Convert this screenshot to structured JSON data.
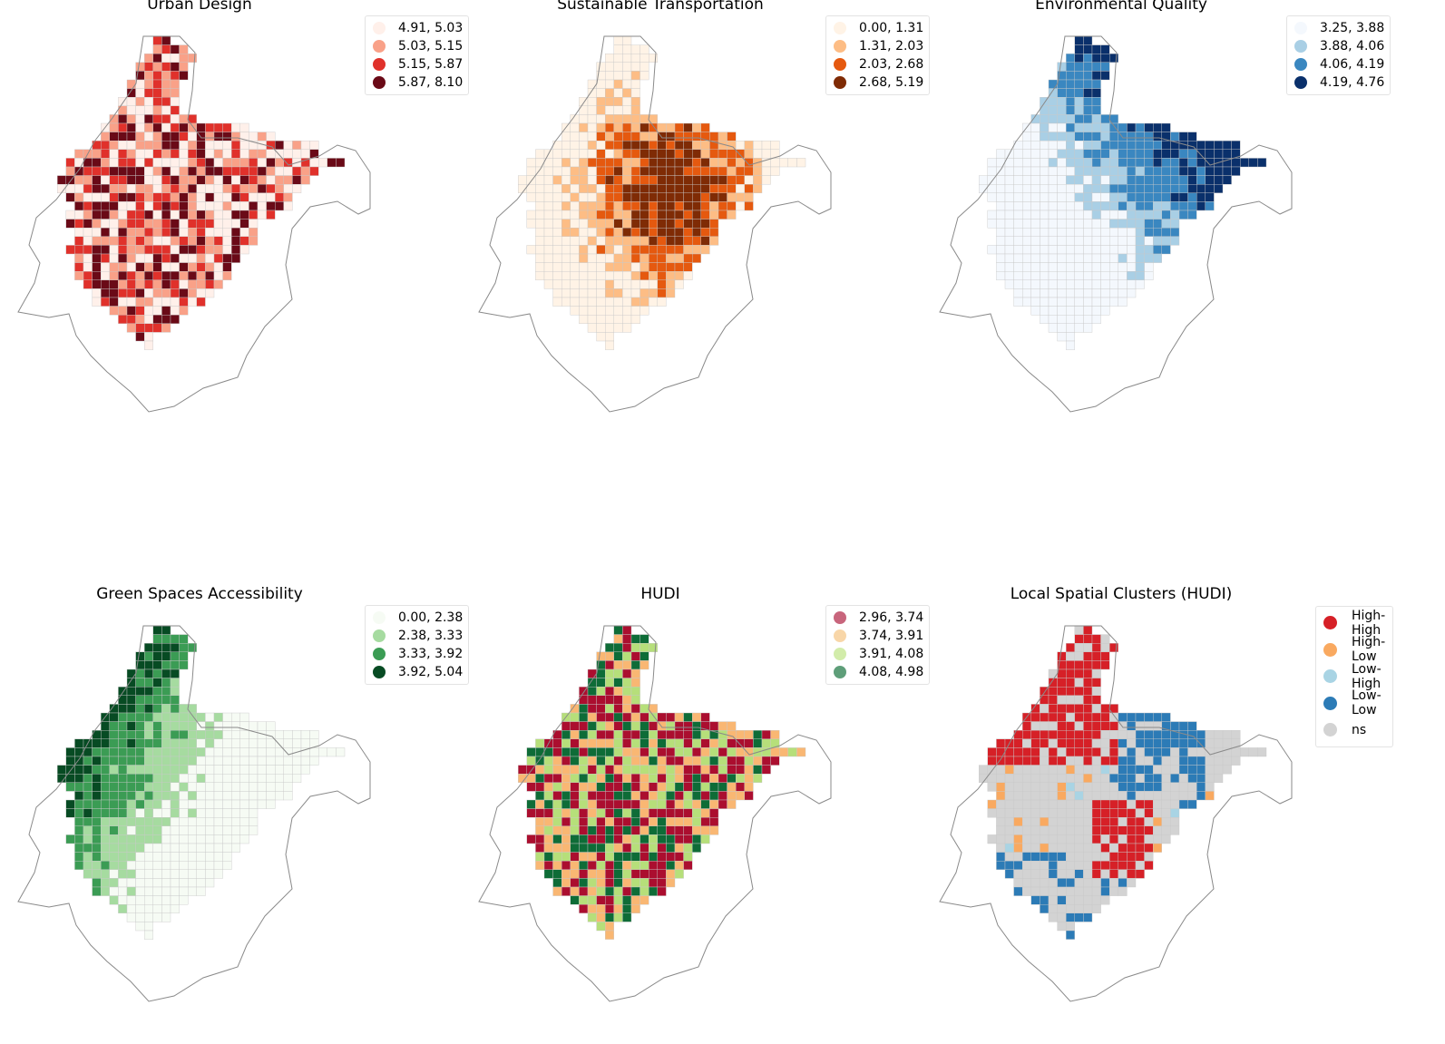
{
  "panels": [
    {
      "title": "Urban Design",
      "palette": [
        "#fff0ea",
        "#f9a188",
        "#e0312b",
        "#6a0a17"
      ],
      "legend": [
        "4.91, 5.03",
        "5.03, 5.15",
        "5.15, 5.87",
        "5.87, 8.10"
      ],
      "pattern": "random"
    },
    {
      "title": "Sustainable Transportation",
      "palette": [
        "#fff3e6",
        "#fdbd85",
        "#e5590f",
        "#7f2b05"
      ],
      "legend": [
        "0.00, 1.31",
        "1.31, 2.03",
        "2.03, 2.68",
        "2.68, 5.19"
      ],
      "pattern": "center-high"
    },
    {
      "title": "Environmental Quality",
      "palette": [
        "#f4f8fd",
        "#a9cfe5",
        "#3a87c0",
        "#0a306b"
      ],
      "legend": [
        "3.25, 3.88",
        "3.88, 4.06",
        "4.06, 4.19",
        "4.19, 4.76"
      ],
      "pattern": "northeast-high"
    },
    {
      "title": "Green Spaces Accessibility",
      "palette": [
        "#f6fbf4",
        "#a6dba0",
        "#3b9c54",
        "#074b23"
      ],
      "legend": [
        "0.00, 2.38",
        "2.38, 3.33",
        "3.33, 3.92",
        "3.92, 5.04"
      ],
      "pattern": "northwest-high"
    },
    {
      "title": "HUDI",
      "palette": [
        "#ab0e2f",
        "#f9b773",
        "#b6df7a",
        "#0e6c37"
      ],
      "legend_palette": [
        "#c8657c",
        "#f8d6a8",
        "#d2ecaa",
        "#5e9e79"
      ],
      "legend": [
        "2.96, 3.74",
        "3.74, 3.91",
        "3.91, 4.08",
        "4.08, 4.98"
      ],
      "pattern": "random"
    },
    {
      "title": "Local Spatial Clusters (HUDI)",
      "palette": [
        "#d62027",
        "#f9a960",
        "#a9d4e4",
        "#2c7bb6",
        "#d3d3d3"
      ],
      "legend": [
        "High-High",
        "High-Low",
        "Low-High",
        "Low-Low",
        "ns"
      ],
      "pattern": "clusters"
    }
  ]
}
